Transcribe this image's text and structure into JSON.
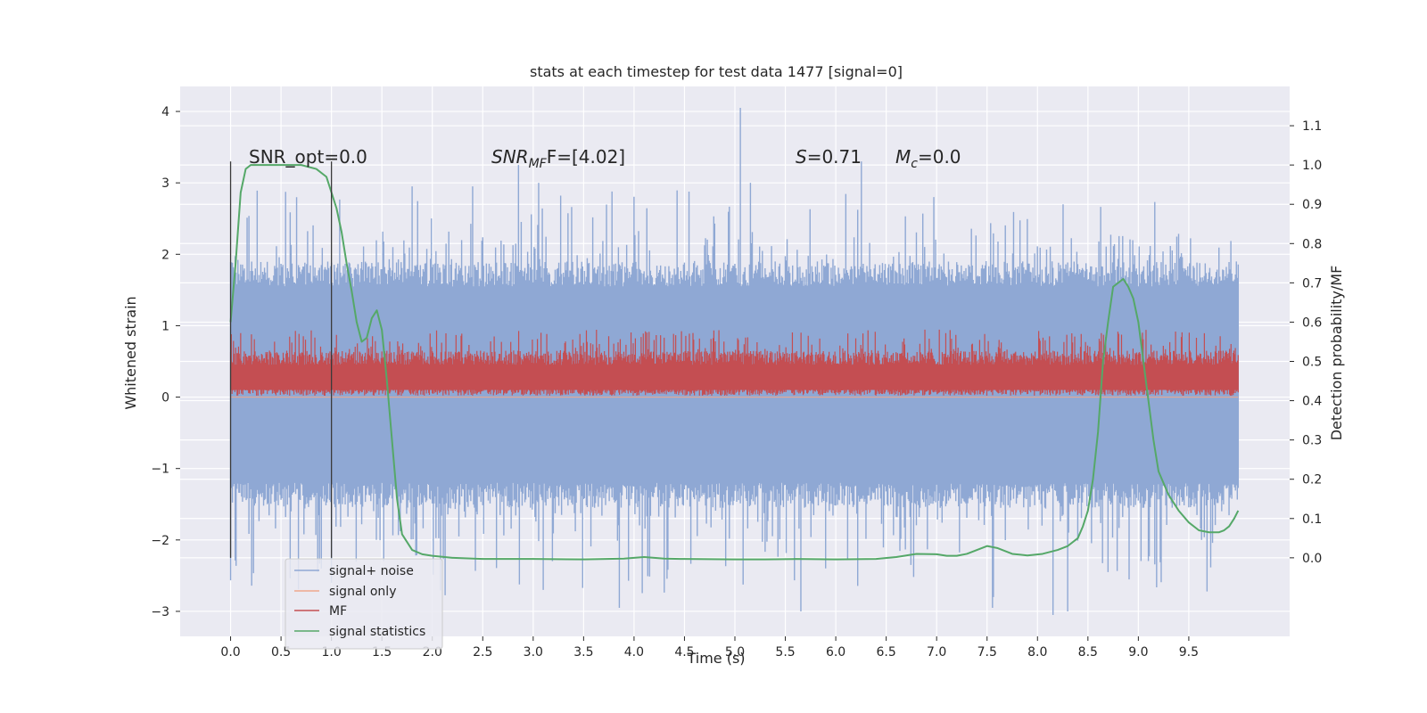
{
  "chart_data": {
    "type": "line",
    "title": "stats at each timestep for test data 1477 [signal=0]",
    "xlabel": "Time (s)",
    "ylabel": "Whitened strain",
    "ylabel_right": "Detection probability/MF",
    "xlim": [
      -0.5,
      10.5
    ],
    "ylim": [
      -3.35,
      4.35
    ],
    "ylim_right": [
      -0.2,
      1.2
    ],
    "x_ticks": [
      0.0,
      0.5,
      1.0,
      1.5,
      2.0,
      2.5,
      3.0,
      3.5,
      4.0,
      4.5,
      5.0,
      5.5,
      6.0,
      6.5,
      7.0,
      7.5,
      8.0,
      8.5,
      9.0,
      9.5
    ],
    "x_tick_labels": [
      "0.0",
      "0.5",
      "1.0",
      "1.5",
      "2.0",
      "2.5",
      "3.0",
      "3.5",
      "4.0",
      "4.5",
      "5.0",
      "5.5",
      "6.0",
      "6.5",
      "7.0",
      "7.5",
      "8.0",
      "8.5",
      "9.0",
      "9.5"
    ],
    "y_ticks": [
      -3,
      -2,
      -1,
      0,
      1,
      2,
      3,
      4
    ],
    "y_tick_labels": [
      "−3",
      "−2",
      "−1",
      "0",
      "1",
      "2",
      "3",
      "4"
    ],
    "y_ticks_right": [
      0.0,
      0.1,
      0.2,
      0.3,
      0.4,
      0.5,
      0.6,
      0.7,
      0.8,
      0.9,
      1.0,
      1.1
    ],
    "y_tick_labels_right": [
      "0.0",
      "0.1",
      "0.2",
      "0.3",
      "0.4",
      "0.5",
      "0.6",
      "0.7",
      "0.8",
      "0.9",
      "1.0",
      "1.1"
    ],
    "grid": true,
    "legend_position": "lower-left",
    "annotations": {
      "snr_opt": "SNR_opt=0.0",
      "snr_mf_prefix": "SNR",
      "snr_mf_sub": "MF",
      "snr_mf_suffix": "F=[4.02]",
      "s_label": "S",
      "s_value": "=0.71",
      "mc_label": "M",
      "mc_sub": "c",
      "mc_value": "=0.0"
    },
    "vertical_lines": [
      0.0,
      1.0
    ],
    "vertical_line_range": [
      -2.25,
      3.3
    ],
    "series": [
      {
        "name": "signal+ noise",
        "color": "#8fa8d4",
        "style": "noise band",
        "x_range": [
          0.0,
          9.99
        ],
        "typical_range": [
          -1.2,
          1.55
        ],
        "extreme_range": [
          -3.0,
          4.05
        ]
      },
      {
        "name": "signal only",
        "color": "#f0a88c",
        "style": "line",
        "values": "flat at 0"
      },
      {
        "name": "MF",
        "color": "#c44e52",
        "style": "noise band",
        "x_range": [
          0.0,
          9.99
        ],
        "typical_range": [
          0.05,
          0.6
        ],
        "extreme_range": [
          0.0,
          1.0
        ]
      },
      {
        "name": "signal statistics",
        "color": "#55a868",
        "style": "line",
        "axis": "right",
        "x": [
          0.0,
          0.05,
          0.1,
          0.15,
          0.2,
          0.3,
          0.5,
          0.7,
          0.85,
          0.95,
          1.0,
          1.05,
          1.1,
          1.15,
          1.2,
          1.25,
          1.3,
          1.35,
          1.4,
          1.45,
          1.5,
          1.55,
          1.6,
          1.65,
          1.7,
          1.8,
          1.9,
          2.0,
          2.2,
          2.5,
          3.0,
          3.5,
          3.9,
          4.1,
          4.3,
          4.5,
          5.0,
          5.3,
          5.6,
          6.0,
          6.4,
          6.6,
          6.8,
          7.0,
          7.1,
          7.2,
          7.3,
          7.4,
          7.5,
          7.6,
          7.75,
          7.9,
          8.05,
          8.2,
          8.3,
          8.4,
          8.45,
          8.5,
          8.55,
          8.6,
          8.65,
          8.7,
          8.75,
          8.8,
          8.85,
          8.9,
          8.95,
          9.0,
          9.05,
          9.1,
          9.15,
          9.2,
          9.3,
          9.4,
          9.5,
          9.6,
          9.7,
          9.8,
          9.85,
          9.9,
          9.95,
          9.99
        ],
        "y": [
          0.6,
          0.75,
          0.93,
          0.99,
          1.0,
          1.0,
          1.0,
          1.0,
          0.99,
          0.97,
          0.93,
          0.89,
          0.83,
          0.75,
          0.68,
          0.6,
          0.55,
          0.56,
          0.61,
          0.63,
          0.58,
          0.45,
          0.3,
          0.15,
          0.06,
          0.02,
          0.009,
          0.005,
          0.0,
          -0.003,
          -0.003,
          -0.004,
          -0.002,
          0.002,
          -0.002,
          -0.003,
          -0.004,
          -0.004,
          -0.003,
          -0.004,
          -0.003,
          0.002,
          0.01,
          0.009,
          0.005,
          0.005,
          0.01,
          0.02,
          0.03,
          0.025,
          0.01,
          0.006,
          0.01,
          0.02,
          0.03,
          0.05,
          0.08,
          0.12,
          0.2,
          0.32,
          0.5,
          0.6,
          0.69,
          0.7,
          0.71,
          0.69,
          0.66,
          0.6,
          0.5,
          0.4,
          0.3,
          0.22,
          0.16,
          0.12,
          0.09,
          0.07,
          0.065,
          0.065,
          0.07,
          0.08,
          0.1,
          0.12
        ]
      }
    ]
  }
}
